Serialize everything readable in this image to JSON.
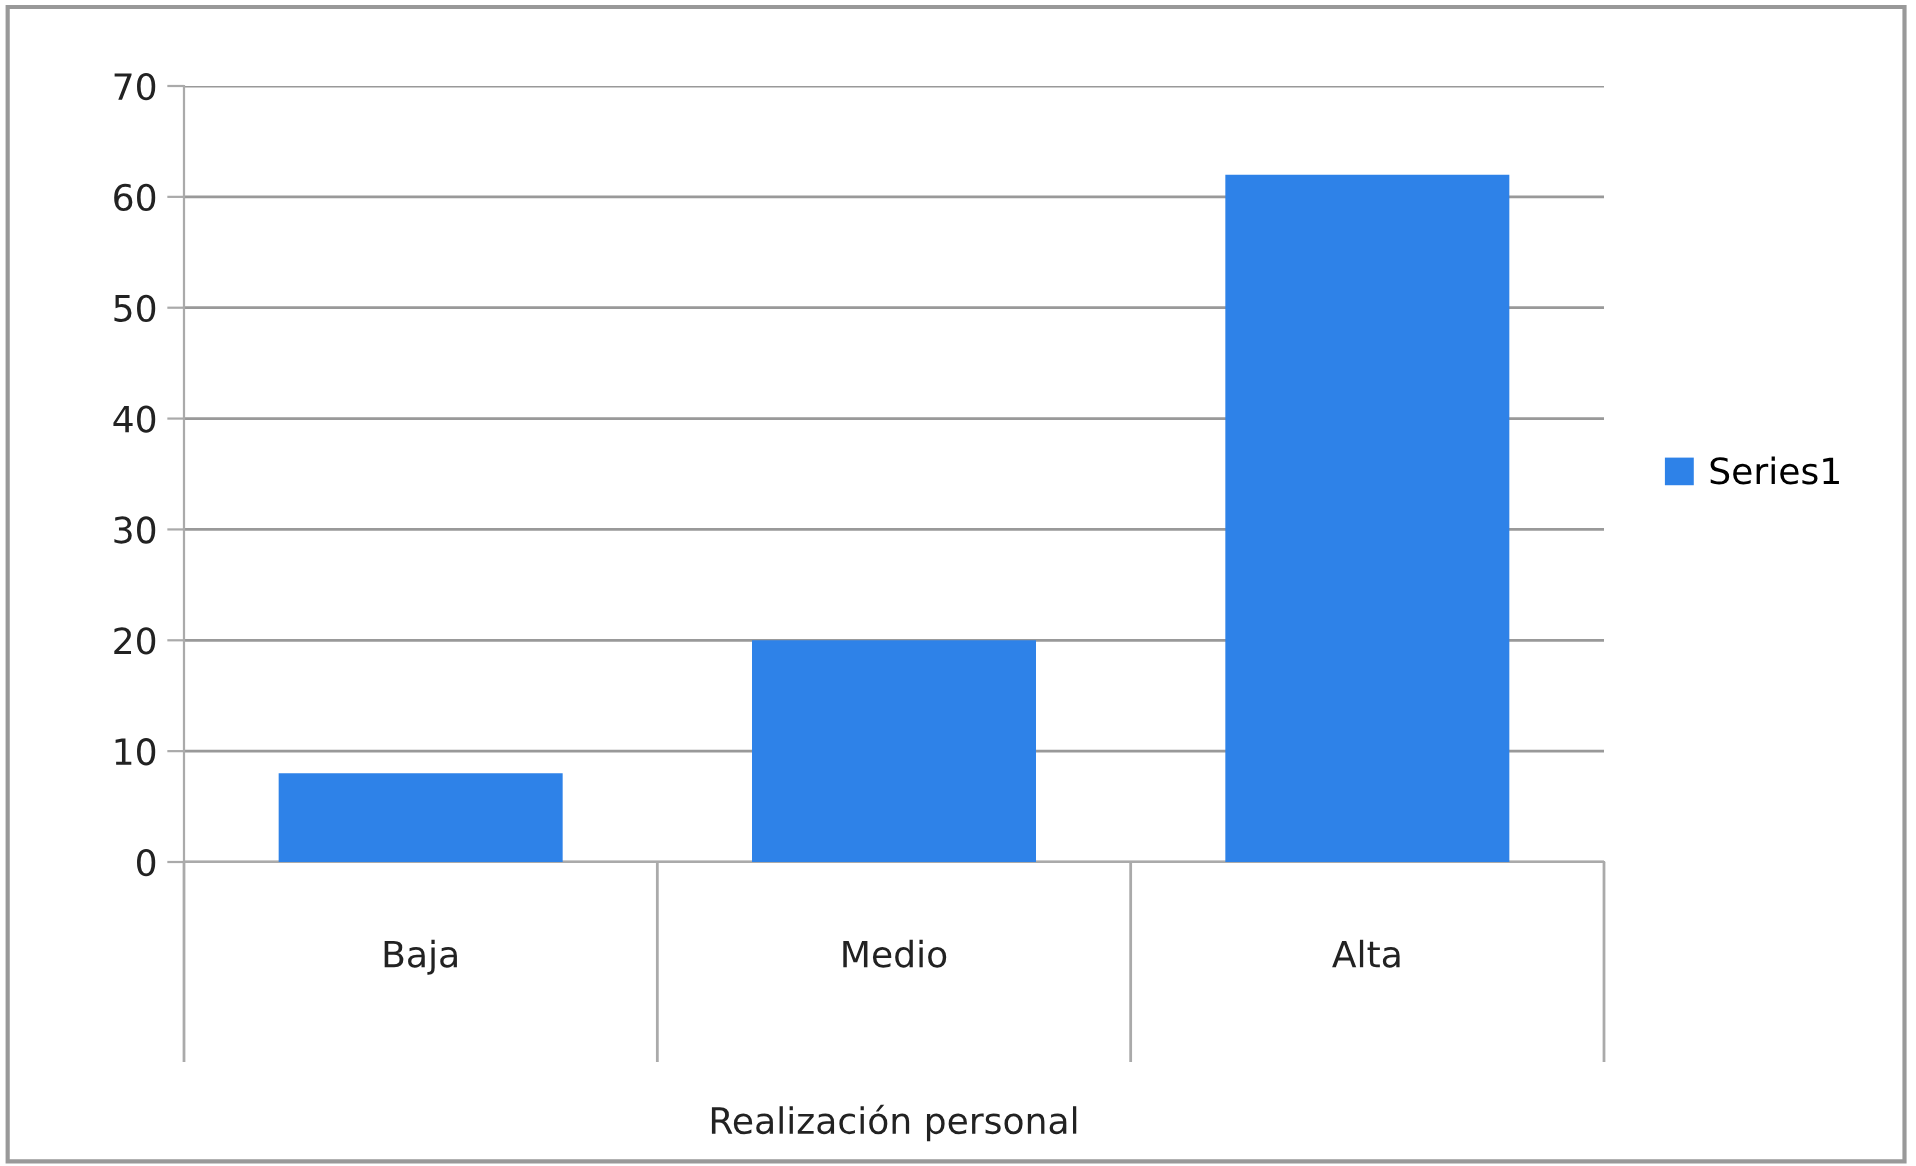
{
  "chart_data": {
    "type": "bar",
    "categories": [
      "Baja",
      "Medio",
      "Alta"
    ],
    "series": [
      {
        "name": "Series1",
        "color": "#2e82e8",
        "values": [
          8,
          20,
          62
        ]
      }
    ],
    "xlabel": "Realización personal",
    "ylim": [
      0,
      70
    ],
    "yticks": [
      0,
      10,
      20,
      30,
      40,
      50,
      60,
      70
    ],
    "grid": "y",
    "legend": "right"
  }
}
